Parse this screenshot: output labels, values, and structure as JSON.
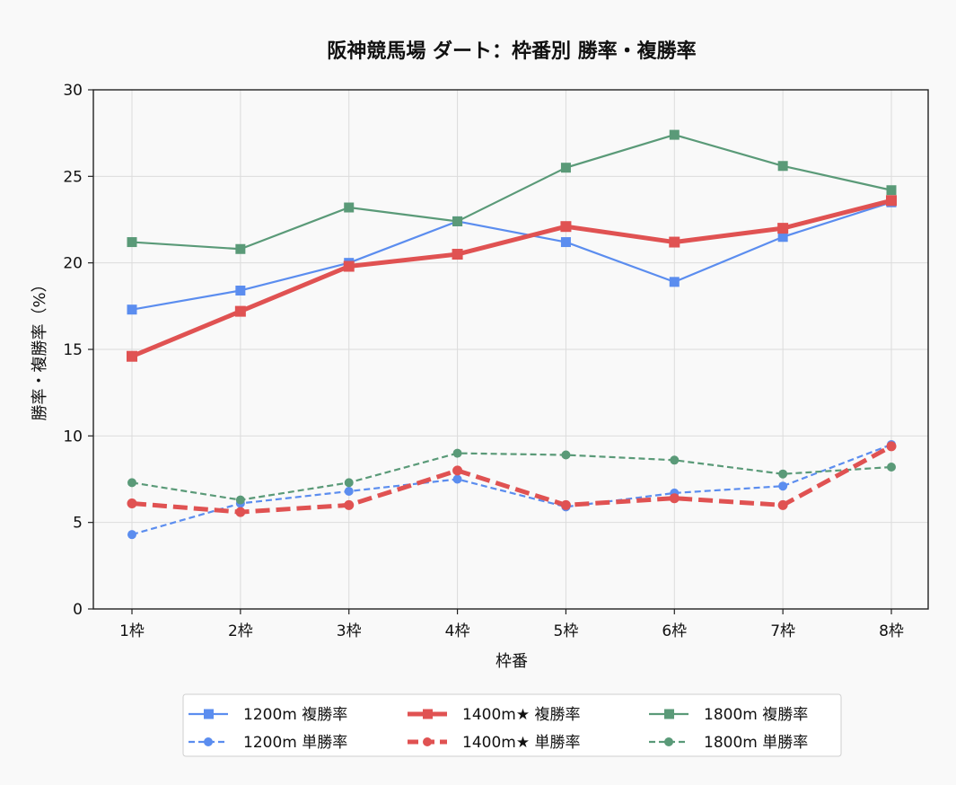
{
  "chart_data": {
    "type": "line",
    "title": "阪神競馬場 ダート：枠番別 勝率・複勝率",
    "xlabel": "枠番",
    "ylabel": "勝率・複勝率（%）",
    "categories": [
      "1枠",
      "2枠",
      "3枠",
      "4枠",
      "5枠",
      "6枠",
      "7枠",
      "8枠"
    ],
    "ylim": [
      0,
      30
    ],
    "yticks": [
      0,
      5,
      10,
      15,
      20,
      25,
      30
    ],
    "grid": true,
    "legend_position": "bottom-center",
    "series": [
      {
        "name": "1200m 複勝率",
        "color": "#5b8def",
        "style": "solid",
        "marker": "square",
        "width": 2.2,
        "values": [
          17.3,
          18.4,
          20.0,
          22.4,
          21.2,
          18.9,
          21.5,
          23.5
        ]
      },
      {
        "name": "1200m 単勝率",
        "color": "#5b8def",
        "style": "dashed",
        "marker": "circle",
        "width": 2.2,
        "values": [
          4.3,
          6.1,
          6.8,
          7.5,
          5.9,
          6.7,
          7.1,
          9.5
        ]
      },
      {
        "name": "1400m★ 複勝率",
        "color": "#e05252",
        "style": "solid",
        "marker": "square",
        "width": 5,
        "values": [
          14.6,
          17.2,
          19.8,
          20.5,
          22.1,
          21.2,
          22.0,
          23.6
        ]
      },
      {
        "name": "1400m★ 単勝率",
        "color": "#e05252",
        "style": "dashed",
        "marker": "circle",
        "width": 5,
        "values": [
          6.1,
          5.6,
          6.0,
          8.0,
          6.0,
          6.4,
          6.0,
          9.4
        ]
      },
      {
        "name": "1800m 複勝率",
        "color": "#5a9a78",
        "style": "solid",
        "marker": "square",
        "width": 2.2,
        "values": [
          21.2,
          20.8,
          23.2,
          22.4,
          25.5,
          27.4,
          25.6,
          24.2
        ]
      },
      {
        "name": "1800m 単勝率",
        "color": "#5a9a78",
        "style": "dashed",
        "marker": "circle",
        "width": 2.2,
        "values": [
          7.3,
          6.3,
          7.3,
          9.0,
          8.9,
          8.6,
          7.8,
          8.2
        ]
      }
    ]
  }
}
